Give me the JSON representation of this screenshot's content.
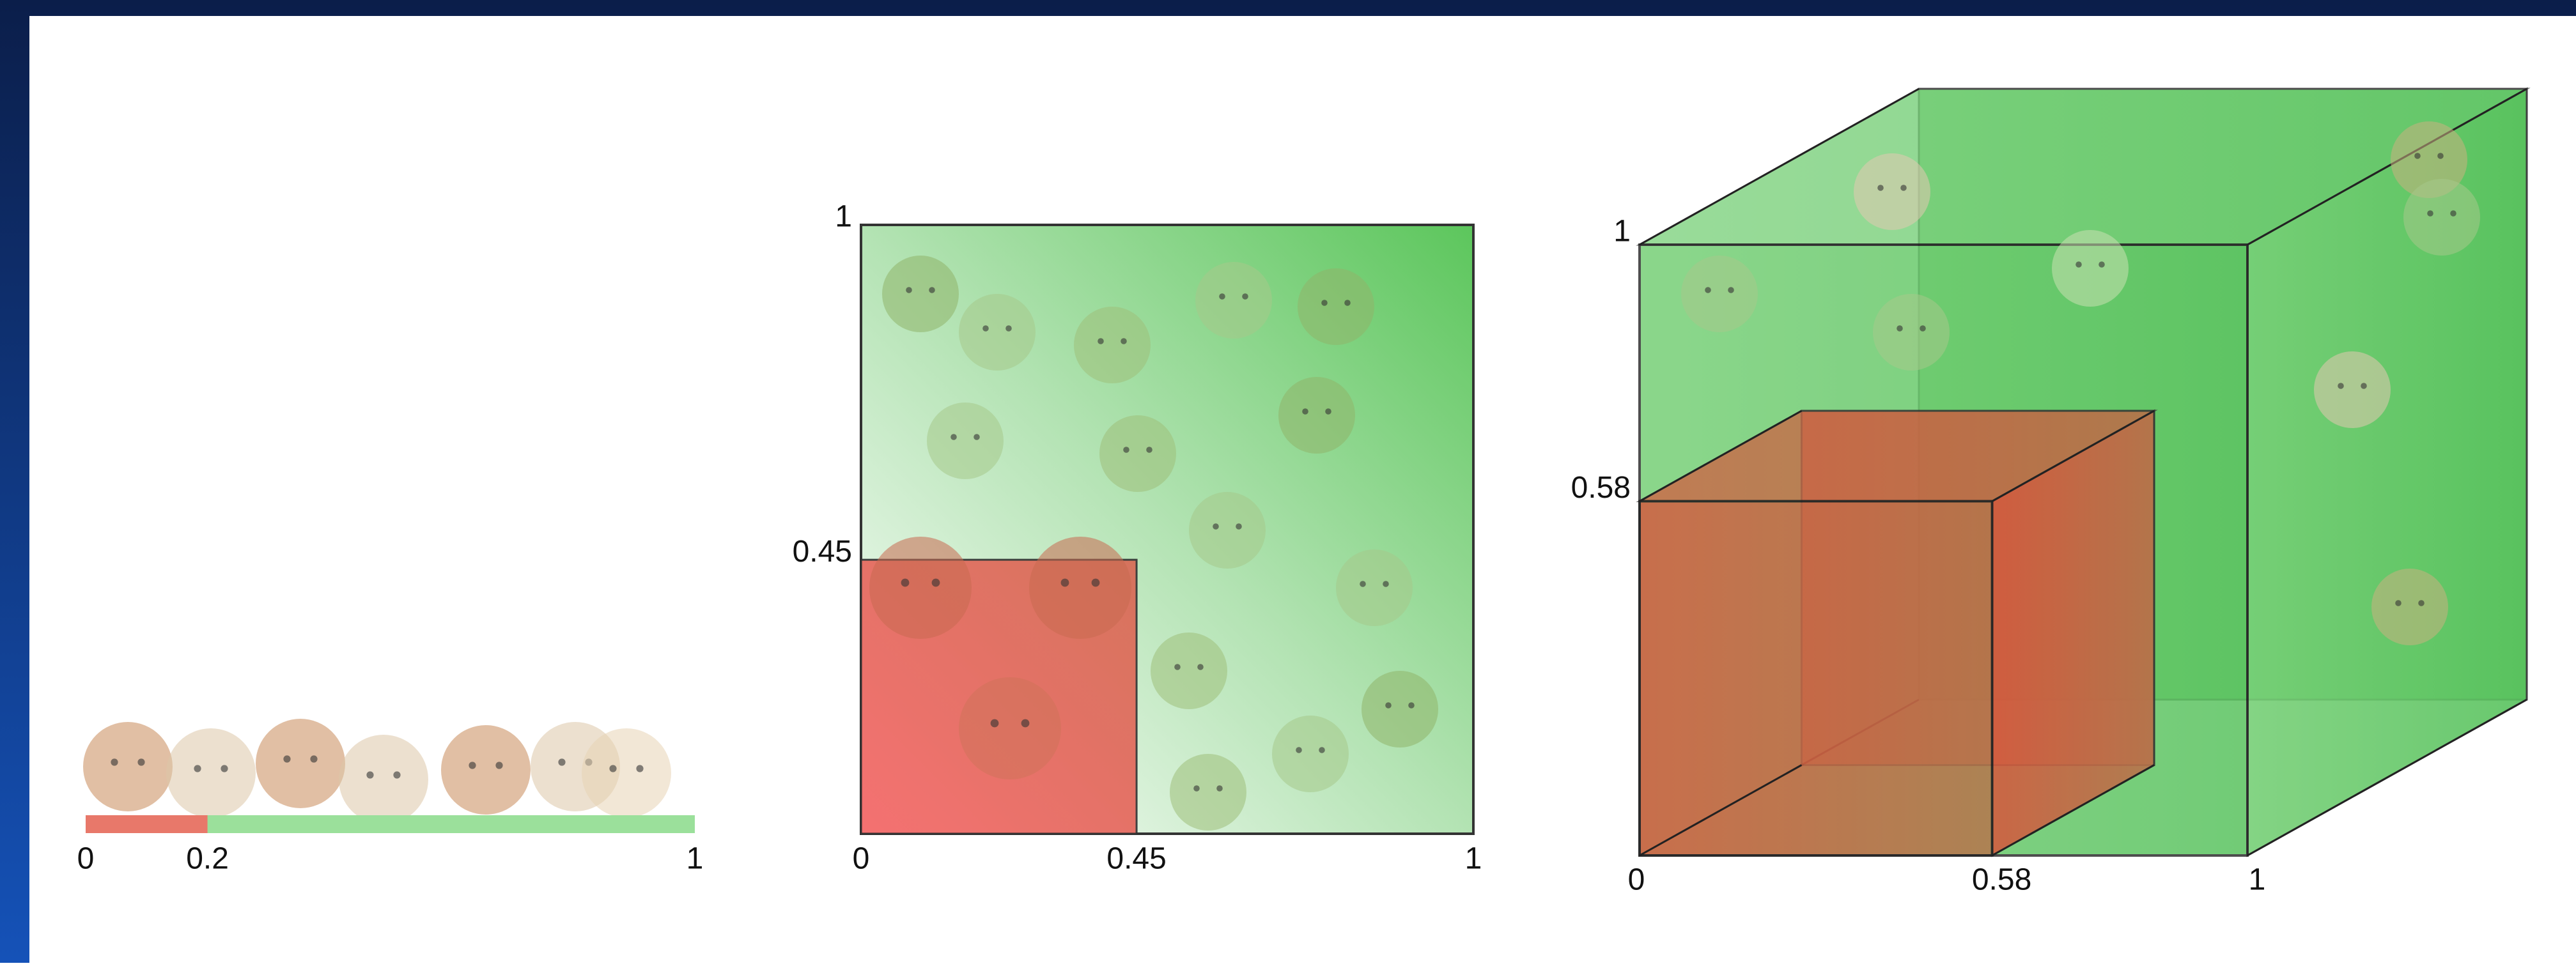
{
  "panels": [
    {
      "x_labels": [
        0,
        0.2,
        1
      ]
    },
    {
      "x_labels": [
        0,
        0.45,
        1
      ],
      "y_labels": [
        0.45,
        1
      ]
    },
    {
      "x_labels": [
        0,
        0.58,
        1
      ],
      "y_labels": [
        0.58,
        1
      ]
    }
  ]
}
